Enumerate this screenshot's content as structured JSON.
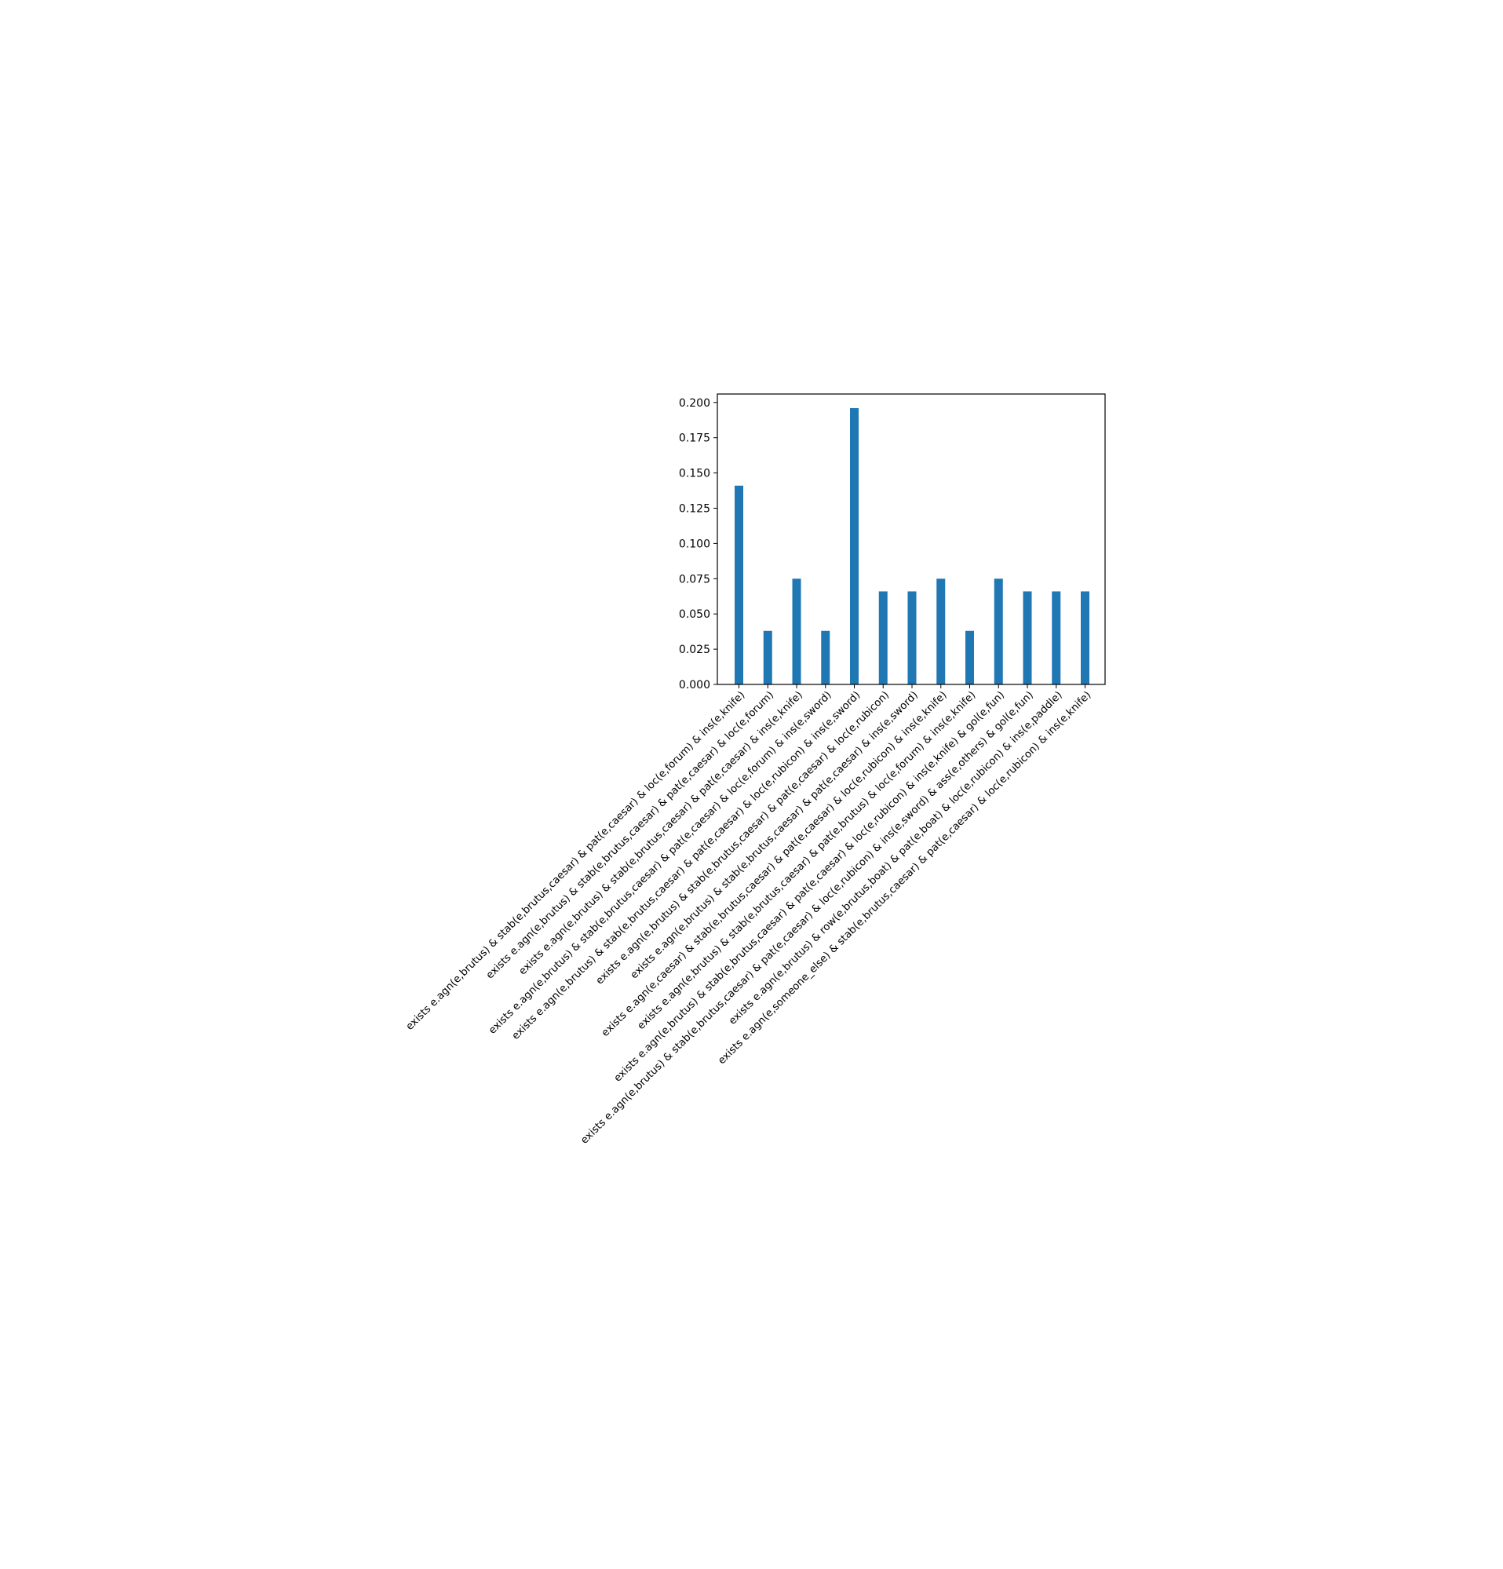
{
  "chart_data": {
    "type": "bar",
    "title": "",
    "xlabel": "",
    "ylabel": "",
    "ylim": [
      0,
      0.206
    ],
    "yticks": [
      "0.000",
      "0.025",
      "0.050",
      "0.075",
      "0.100",
      "0.125",
      "0.150",
      "0.175",
      "0.200"
    ],
    "grid": false,
    "bar_color": "#1f77b4",
    "categories": [
      "exists e.agn(e,brutus) & stab(e,brutus,caesar) & pat(e,caesar) & loc(e,forum) & ins(e,knife)",
      "exists e.agn(e,brutus) & stab(e,brutus,caesar) & pat(e,caesar) & loc(e,forum)",
      "exists e.agn(e,brutus) & stab(e,brutus,caesar) & pat(e,caesar) & ins(e,knife)",
      "exists e.agn(e,brutus) & stab(e,brutus,caesar) & pat(e,caesar) & loc(e,forum) & ins(e,sword)",
      "exists e.agn(e,brutus) & stab(e,brutus,caesar) & pat(e,caesar) & loc(e,rubicon) & ins(e,sword)",
      "exists e.agn(e,brutus) & stab(e,brutus,caesar) & pat(e,caesar) & loc(e,rubicon)",
      "exists e.agn(e,brutus) & stab(e,brutus,caesar) & pat(e,caesar) & ins(e,sword)",
      "exists e.agn(e,caesar) & stab(e,brutus,caesar) & pat(e,caesar) & loc(e,rubicon) & ins(e,knife)",
      "exists e.agn(e,brutus) & stab(e,brutus,caesar) & pat(e,brutus) & loc(e,forum) & ins(e,knife)",
      "exists e.agn(e,brutus) & stab(e,brutus,caesar) & pat(e,caesar) & loc(e,rubicon) & ins(e,knife) & gol(e,fun)",
      "exists e.agn(e,brutus) & stab(e,brutus,caesar) & pat(e,caesar) & loc(e,rubicon) & ins(e,sword) & ass(e,others) & gol(e,fun)",
      "exists e.agn(e,brutus) & row(e,brutus,boat) & pat(e,boat) & loc(e,rubicon) & ins(e,paddle)",
      "exists e.agn(e,someone_else) & stab(e,brutus,caesar) & pat(e,caesar) & loc(e,rubicon) & ins(e,knife)"
    ],
    "values": [
      0.141,
      0.038,
      0.075,
      0.038,
      0.196,
      0.066,
      0.066,
      0.075,
      0.038,
      0.075,
      0.066,
      0.066,
      0.066
    ]
  }
}
